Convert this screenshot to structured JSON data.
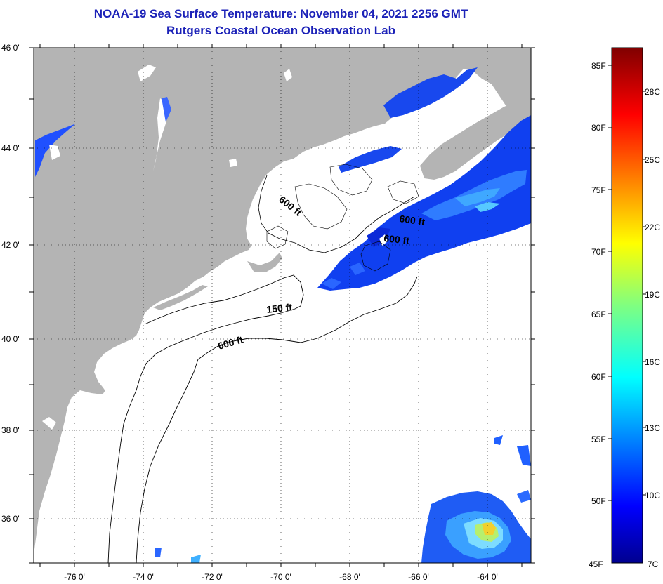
{
  "title": {
    "line1": "NOAA-19 Sea Surface Temperature:  November 04, 2021 2256 GMT",
    "line2": "Rutgers Coastal Ocean Observation Lab"
  },
  "map": {
    "lat_labels": [
      "46 0'",
      "44 0'",
      "42 0'",
      "40 0'",
      "38 0'",
      "36 0'"
    ],
    "lon_labels": [
      "-76 0'",
      "-74 0'",
      "-72 0'",
      "-70 0'",
      "-68 0'",
      "-66 0'",
      "-64 0'"
    ],
    "contour_labels": [
      "600 ft",
      "600 ft",
      "600 ft",
      "150 ft",
      "600 ft"
    ],
    "colors": {
      "land": "#b4b4b4",
      "ocean_nodata": "#ffffff"
    }
  },
  "colorbar": {
    "fahrenheit": [
      "85F",
      "80F",
      "75F",
      "70F",
      "65F",
      "60F",
      "55F",
      "50F",
      "45F"
    ],
    "celsius": [
      "28C",
      "25C",
      "22C",
      "19C",
      "16C",
      "13C",
      "10C",
      "7C"
    ],
    "range_f": [
      45,
      87
    ]
  }
}
